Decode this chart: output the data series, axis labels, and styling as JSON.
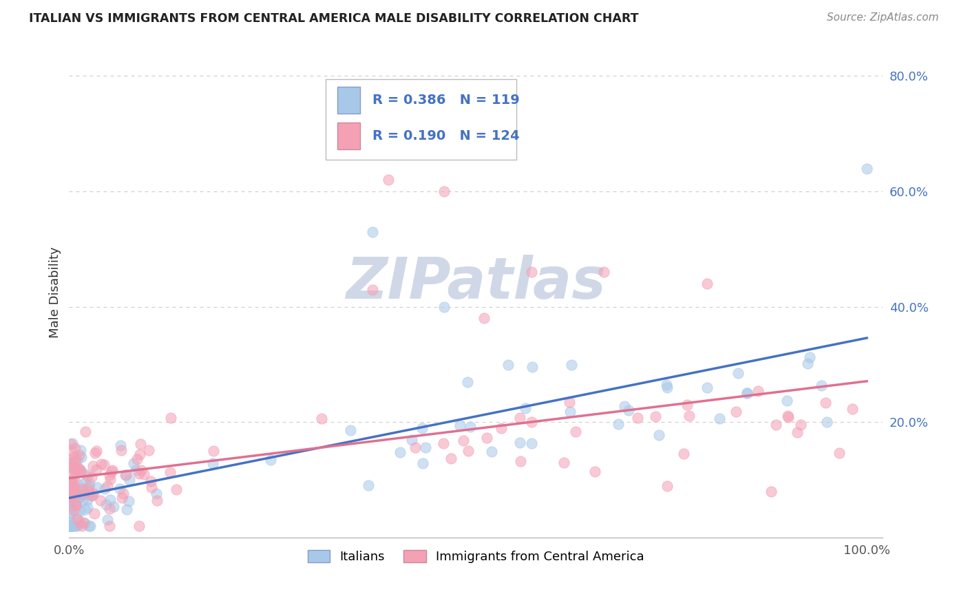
{
  "title": "ITALIAN VS IMMIGRANTS FROM CENTRAL AMERICA MALE DISABILITY CORRELATION CHART",
  "source": "Source: ZipAtlas.com",
  "ylabel": "Male Disability",
  "series1_label": "Italians",
  "series2_label": "Immigrants from Central America",
  "series1_color": "#a8c8e8",
  "series2_color": "#f4a0b5",
  "series1_line_color": "#4472c4",
  "series2_line_color": "#e07090",
  "series1_R": "0.386",
  "series1_N": "119",
  "series2_R": "0.190",
  "series2_N": "124",
  "legend_text_color": "#4472c4",
  "ytick_color": "#4472c4",
  "background_color": "#ffffff",
  "grid_color": "#cccccc",
  "watermark_text": "ZIPatlas",
  "watermark_color": "#d0d8e8",
  "title_color": "#222222",
  "source_color": "#888888"
}
